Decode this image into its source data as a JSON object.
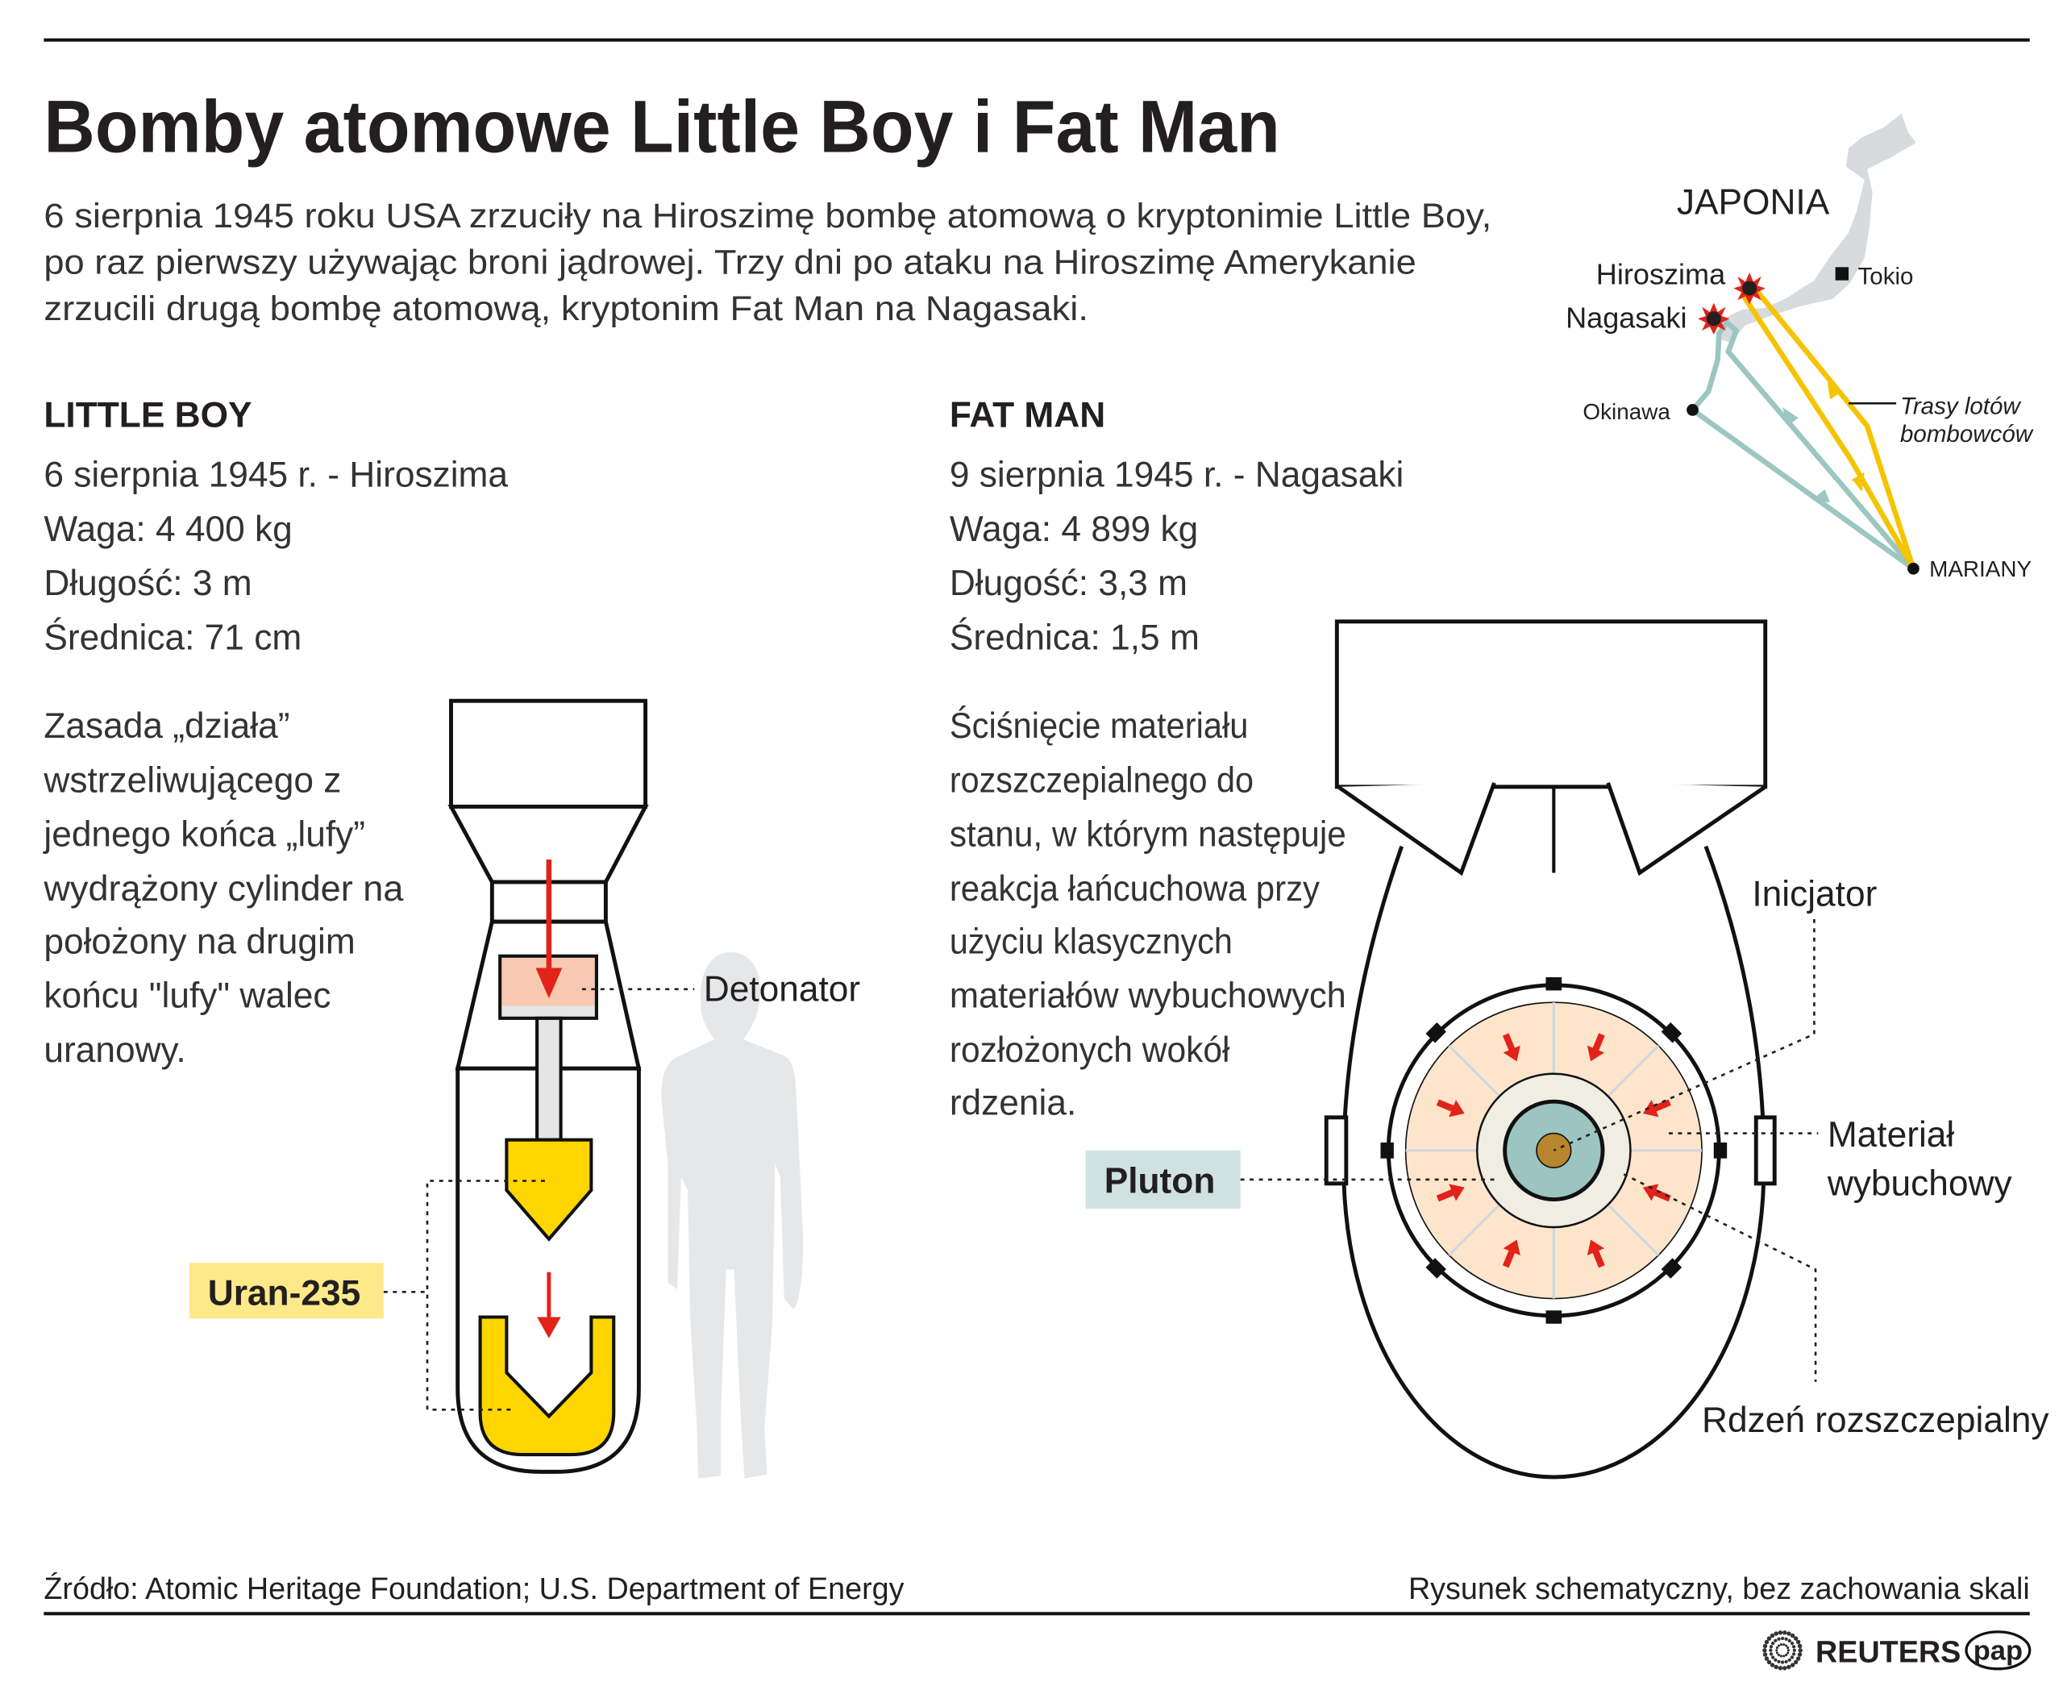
{
  "title": "Bomby atomowe Little Boy i Fat Man",
  "intro": [
    "6 sierpnia 1945 roku USA zrzuciły na Hiroszimę bombę atomową o kryptonimie Little Boy,",
    "po raz pierwszy używając broni jądrowej. Trzy dni po ataku na Hiroszimę Amerykanie",
    "zrzucili drugą bombę atomową, kryptonim Fat Man na Nagasaki."
  ],
  "map": {
    "country": "JAPONIA",
    "hiroshima": "Hiroszima",
    "nagasaki": "Nagasaki",
    "tokyo": "Tokio",
    "okinawa": "Okinawa",
    "marianas": "MARIANY",
    "routes_label": [
      "Trasy lotów",
      "bombowców"
    ],
    "colors": {
      "land": "#d7dbdd",
      "hiroshima_route": "#f5c400",
      "nagasaki_route": "#9cc6c2",
      "explosion": "#e2231a"
    }
  },
  "little_boy": {
    "name": "LITTLE BOY",
    "details": [
      "6 sierpnia 1945 r. - Hiroszima",
      "Waga: 4 400 kg",
      "Długość: 3 m",
      "Średnica: 71 cm"
    ],
    "description": [
      "Zasada „działa”",
      "wstrzeliwującego z",
      "jednego końca „lufy”",
      "wydrążony cylinder  na",
      "położony na drugim",
      "końcu \"lufy\" walec",
      "uranowy."
    ],
    "labels": {
      "detonator": "Detonator",
      "uranium": "Uran-235"
    },
    "colors": {
      "uranium": "#ffd500",
      "uranium_label": "#fee98a",
      "detonator": "#f9c8b1",
      "arrow": "#e2231a",
      "person": "#e6e7e8"
    }
  },
  "fat_man": {
    "name": "FAT MAN",
    "details": [
      "9 sierpnia 1945 r. - Nagasaki",
      "Waga: 4 899 kg",
      "Długość: 3,3 m",
      "Średnica: 1,5 m"
    ],
    "description": [
      "Ściśnięcie materiału",
      "rozszczepialnego do",
      "stanu, w którym następuje",
      "reakcja łańcuchowa przy",
      "użyciu klasycznych",
      "materiałów wybuchowych",
      "rozłożonych wokół",
      "rdzenia."
    ],
    "labels": {
      "initiator": "Inicjator",
      "explosive": [
        "Materiał",
        "wybuchowy"
      ],
      "core": "Rdzeń rozszczepialny",
      "plutonium": "Pluton"
    },
    "colors": {
      "explosive": "#fde5cc",
      "core": "#9cc4c1",
      "initiator": "#b8862e",
      "tamper": "#f0ede3",
      "plutonium_label": "#cfe2e1"
    }
  },
  "footer": {
    "source": "Źródło: Atomic Heritage Foundation; U.S. Department of Energy",
    "note": "Rysunek schematyczny, bez zachowania skali",
    "logos": [
      "REUTERS",
      "pap"
    ]
  }
}
